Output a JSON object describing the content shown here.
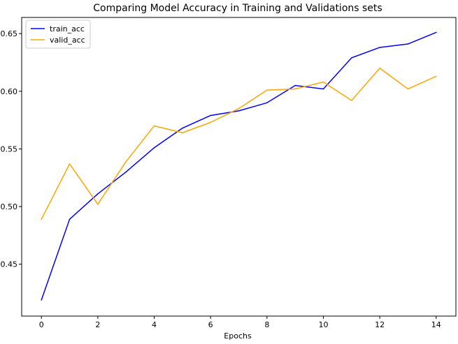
{
  "chart_data": {
    "type": "line",
    "title": "Comparing Model Accuracy in Training and Validations sets",
    "xlabel": "Epochs",
    "ylabel": "",
    "x": [
      0,
      1,
      2,
      3,
      4,
      5,
      6,
      7,
      8,
      9,
      10,
      11,
      12,
      13,
      14
    ],
    "xlim": [
      -0.7,
      14.7
    ],
    "ylim": [
      0.405,
      0.664
    ],
    "xticks": [
      0,
      2,
      4,
      6,
      8,
      10,
      12,
      14
    ],
    "xtick_labels": [
      "0",
      "2",
      "4",
      "6",
      "8",
      "10",
      "12",
      "14"
    ],
    "yticks": [
      0.45,
      0.5,
      0.55,
      0.6,
      0.65
    ],
    "ytick_labels": [
      "0.45",
      "0.50",
      "0.55",
      "0.60",
      "0.65"
    ],
    "grid": false,
    "legend_position": "top-left",
    "series": [
      {
        "name": "train_acc",
        "color": "#0000ff",
        "values": [
          0.419,
          0.489,
          0.511,
          0.53,
          0.551,
          0.568,
          0.579,
          0.583,
          0.59,
          0.605,
          0.602,
          0.629,
          0.638,
          0.641,
          0.651
        ]
      },
      {
        "name": "valid_acc",
        "color": "#ffa500",
        "values": [
          0.489,
          0.537,
          0.502,
          0.539,
          0.57,
          0.564,
          0.573,
          0.585,
          0.601,
          0.602,
          0.608,
          0.592,
          0.62,
          0.602,
          0.613
        ]
      }
    ]
  }
}
